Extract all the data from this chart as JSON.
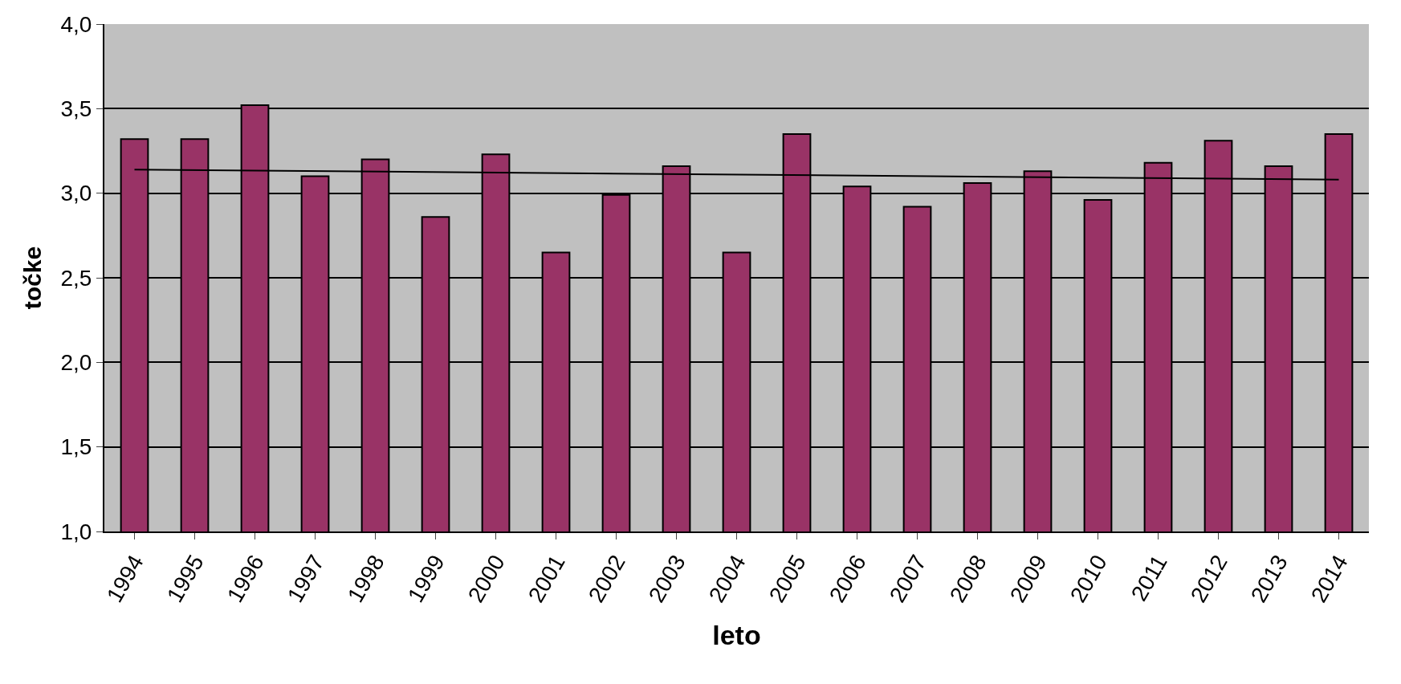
{
  "chart_data": {
    "type": "bar",
    "xlabel": "leto",
    "ylabel": "točke",
    "x": [
      1994,
      1995,
      1996,
      1997,
      1998,
      1999,
      2000,
      2001,
      2002,
      2003,
      2004,
      2005,
      2006,
      2007,
      2008,
      2009,
      2010,
      2011,
      2012,
      2013,
      2014
    ],
    "xlim": [
      1993.5,
      2014.5
    ],
    "xticks": [
      1994,
      1995,
      1996,
      1997,
      1998,
      1999,
      2000,
      2001,
      2002,
      2003,
      2004,
      2005,
      2006,
      2007,
      2008,
      2009,
      2010,
      2011,
      2012,
      2013,
      2014
    ],
    "ylim": [
      1,
      4
    ],
    "yticks": [
      {
        "value": 1,
        "label": "1,0"
      },
      {
        "value": 1.5,
        "label": "1,5"
      },
      {
        "value": 2,
        "label": "2,0"
      },
      {
        "value": 2.5,
        "label": "2,5"
      },
      {
        "value": 3,
        "label": "3,0"
      },
      {
        "value": 3.5,
        "label": "3,5"
      },
      {
        "value": 4,
        "label": "4,0"
      }
    ],
    "grid": "y",
    "series": [
      {
        "color": "#993366",
        "values": [
          3.32,
          3.32,
          3.52,
          3.1,
          3.2,
          2.86,
          3.23,
          2.65,
          2.99,
          3.16,
          2.65,
          3.35,
          3.04,
          2.92,
          3.06,
          3.13,
          2.96,
          3.18,
          3.31,
          3.16,
          3.35
        ]
      },
      {
        "type": "line",
        "color": "#000000",
        "x": [
          1994,
          2014
        ],
        "values": [
          3.14,
          3.08
        ]
      }
    ]
  }
}
